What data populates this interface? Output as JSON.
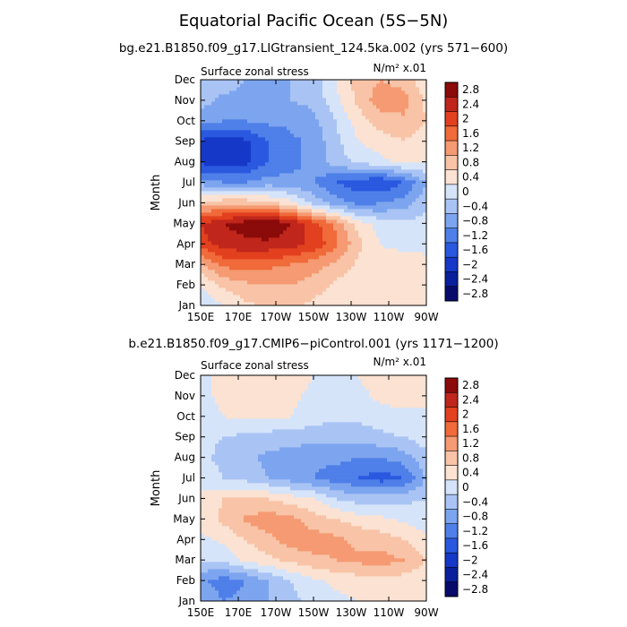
{
  "page": {
    "title": "Equatorial Pacific Ocean (5S−5N)"
  },
  "colorbar": {
    "labels": [
      "2.8",
      "2.4",
      "2",
      "1.6",
      "1.2",
      "0.8",
      "0.4",
      "0",
      "−0.4",
      "−0.8",
      "−1.2",
      "−1.6",
      "−2",
      "−2.4",
      "−2.8"
    ],
    "colors": [
      "#8b0a0a",
      "#c0261b",
      "#e2401e",
      "#f06a3a",
      "#f59a72",
      "#f8c3a6",
      "#fbe2d2",
      "#d6e4fa",
      "#a9c4f4",
      "#7da5ef",
      "#4f7fe8",
      "#2a59e0",
      "#1638c8",
      "#0a1f9c",
      "#060a6a"
    ]
  },
  "chart_data": [
    {
      "type": "heatmap",
      "title": "bg.e21.B1850.f09_g17.LIGtransient_124.5ka.002 (yrs 571−600)",
      "left_label": "Surface zonal stress",
      "right_label": "N/m² x.01",
      "xlabel": "",
      "ylabel": "Month",
      "x_ticks": [
        "150E",
        "170E",
        "170W",
        "150W",
        "130W",
        "110W",
        "90W"
      ],
      "y_ticks": [
        "Jan",
        "Feb",
        "Mar",
        "Apr",
        "May",
        "Jun",
        "Jul",
        "Aug",
        "Sep",
        "Oct",
        "Nov",
        "Dec"
      ],
      "grid": [
        [
          -0.2,
          0.2,
          0.5,
          0.7,
          0.7,
          0.5,
          0.3,
          0.2,
          0.3,
          0.4,
          0.3
        ],
        [
          0.2,
          0.7,
          0.9,
          1.0,
          1.0,
          0.8,
          0.5,
          0.3,
          0.4,
          0.5,
          0.4
        ],
        [
          0.9,
          1.5,
          1.6,
          1.5,
          1.4,
          1.2,
          0.9,
          0.5,
          0.3,
          0.4,
          0.3
        ],
        [
          2.0,
          2.4,
          2.5,
          2.5,
          2.4,
          2.1,
          1.5,
          0.7,
          0.2,
          0.1,
          0.1
        ],
        [
          2.2,
          2.6,
          2.8,
          3.0,
          2.6,
          2.0,
          1.3,
          0.4,
          0.0,
          -0.1,
          0.0
        ],
        [
          0.7,
          0.9,
          0.9,
          0.7,
          0.4,
          -0.3,
          -0.8,
          -1.1,
          -1.0,
          -0.8,
          -0.3
        ],
        [
          -0.8,
          -1.0,
          -1.0,
          -0.8,
          -0.9,
          -1.0,
          -1.4,
          -1.7,
          -1.8,
          -1.4,
          -0.6
        ],
        [
          -1.9,
          -2.0,
          -1.9,
          -1.4,
          -1.1,
          -0.9,
          -0.4,
          -0.1,
          0.1,
          0.3,
          0.2
        ],
        [
          -1.9,
          -2.0,
          -1.9,
          -1.4,
          -1.1,
          -0.9,
          -0.3,
          0.2,
          0.4,
          0.6,
          0.3
        ],
        [
          -0.9,
          -1.0,
          -1.0,
          -0.9,
          -0.9,
          -0.7,
          -0.2,
          0.4,
          0.8,
          0.9,
          0.6
        ],
        [
          -0.4,
          -0.7,
          -0.7,
          -0.6,
          -0.6,
          -0.5,
          0.1,
          0.7,
          1.3,
          1.2,
          0.5
        ],
        [
          -0.2,
          -0.4,
          -0.6,
          -0.6,
          -0.6,
          -0.4,
          0.2,
          0.8,
          1.0,
          0.8,
          0.3
        ]
      ]
    },
    {
      "type": "heatmap",
      "title": "b.e21.B1850.f09_g17.CMIP6−piControl.001 (yrs 1171−1200)",
      "left_label": "Surface zonal stress",
      "right_label": "N/m² x.01",
      "xlabel": "",
      "ylabel": "Month",
      "x_ticks": [
        "150E",
        "170E",
        "170W",
        "150W",
        "130W",
        "110W",
        "90W"
      ],
      "y_ticks": [
        "Jan",
        "Feb",
        "Mar",
        "Apr",
        "May",
        "Jun",
        "Jul",
        "Aug",
        "Sep",
        "Oct",
        "Nov",
        "Dec"
      ],
      "grid": [
        [
          -0.6,
          -1.0,
          -0.9,
          -0.6,
          -0.3,
          -0.1,
          0.1,
          0.2,
          0.3,
          0.3,
          0.2
        ],
        [
          -0.9,
          -1.2,
          -1.0,
          -0.6,
          -0.2,
          0.1,
          0.3,
          0.4,
          0.5,
          0.4,
          0.3
        ],
        [
          -0.2,
          -0.1,
          0.3,
          0.5,
          0.7,
          0.9,
          1.0,
          1.1,
          1.2,
          1.0,
          0.6
        ],
        [
          0.1,
          0.3,
          0.6,
          0.9,
          1.2,
          1.2,
          1.1,
          0.9,
          0.8,
          0.6,
          0.3
        ],
        [
          0.3,
          0.7,
          1.1,
          1.2,
          1.1,
          0.8,
          0.6,
          0.4,
          0.3,
          0.1,
          0.0
        ],
        [
          0.3,
          0.6,
          0.6,
          0.6,
          0.4,
          0.2,
          -0.2,
          -0.4,
          -0.4,
          -0.3,
          -0.2
        ],
        [
          0.0,
          -0.2,
          -0.3,
          -0.6,
          -0.8,
          -1.0,
          -1.2,
          -1.4,
          -1.6,
          -1.4,
          -0.6
        ],
        [
          -0.1,
          -0.3,
          -0.5,
          -0.7,
          -0.8,
          -0.9,
          -0.9,
          -1.0,
          -1.0,
          -0.8,
          -0.3
        ],
        [
          -0.1,
          -0.2,
          -0.3,
          -0.4,
          -0.4,
          -0.5,
          -0.5,
          -0.4,
          -0.3,
          -0.2,
          0.0
        ],
        [
          0.0,
          0.2,
          0.3,
          0.3,
          0.2,
          0.0,
          -0.1,
          -0.1,
          0.0,
          0.1,
          0.1
        ],
        [
          0.1,
          0.3,
          0.4,
          0.4,
          0.3,
          0.1,
          0.0,
          0.1,
          0.3,
          0.4,
          0.3
        ],
        [
          0.1,
          0.3,
          0.5,
          0.5,
          0.4,
          0.2,
          0.1,
          0.2,
          0.4,
          0.5,
          0.4
        ]
      ]
    }
  ]
}
